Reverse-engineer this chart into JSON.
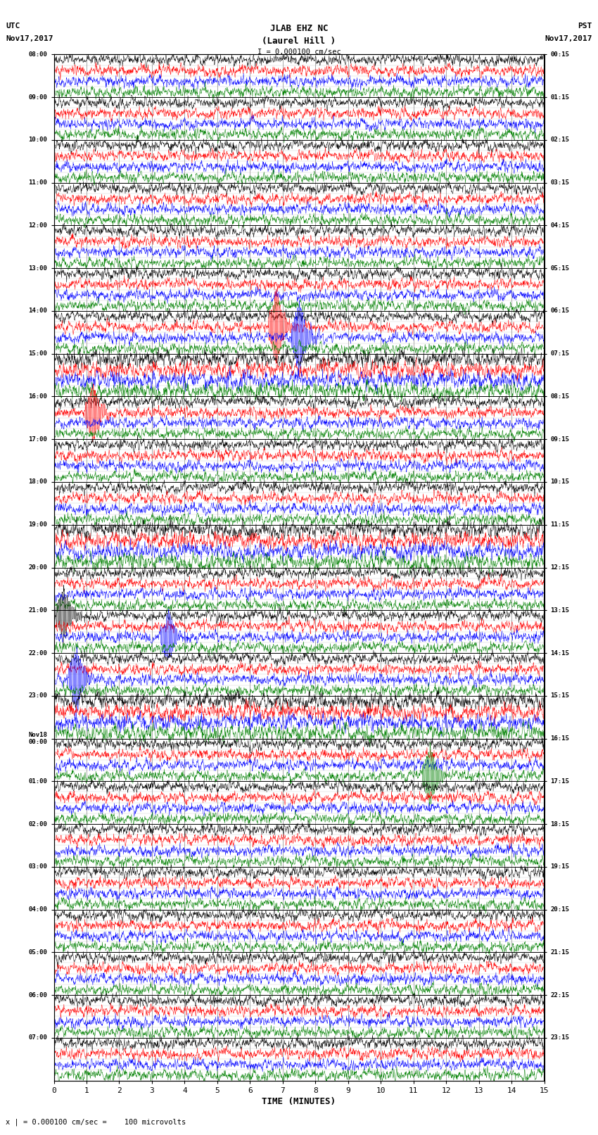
{
  "title_line1": "JLAB EHZ NC",
  "title_line2": "(Laurel Hill )",
  "scale_text": "I = 0.000100 cm/sec",
  "left_label_line1": "UTC",
  "left_label_line2": "Nov17,2017",
  "right_label_line1": "PST",
  "right_label_line2": "Nov17,2017",
  "bottom_label": "TIME (MINUTES)",
  "caption": "x | = 0.000100 cm/sec =    100 microvolts",
  "xlabel_ticks": [
    0,
    1,
    2,
    3,
    4,
    5,
    6,
    7,
    8,
    9,
    10,
    11,
    12,
    13,
    14,
    15
  ],
  "num_groups": 24,
  "traces_per_group": 4,
  "colors": [
    "black",
    "red",
    "blue",
    "green"
  ],
  "utc_times": [
    "08:00",
    "09:00",
    "10:00",
    "11:00",
    "12:00",
    "13:00",
    "14:00",
    "15:00",
    "16:00",
    "17:00",
    "18:00",
    "19:00",
    "20:00",
    "21:00",
    "22:00",
    "23:00",
    "Nov18\n00:00",
    "01:00",
    "02:00",
    "03:00",
    "04:00",
    "05:00",
    "06:00",
    "07:00"
  ],
  "pst_times": [
    "00:15",
    "01:15",
    "02:15",
    "03:15",
    "04:15",
    "05:15",
    "06:15",
    "07:15",
    "08:15",
    "09:15",
    "10:15",
    "11:15",
    "12:15",
    "13:15",
    "14:15",
    "15:15",
    "16:15",
    "17:15",
    "18:15",
    "19:15",
    "20:15",
    "21:15",
    "22:15",
    "23:15"
  ],
  "noise_level": 0.06,
  "background_color": "white",
  "grid_color": "#888888",
  "fig_width": 8.5,
  "fig_height": 16.13
}
